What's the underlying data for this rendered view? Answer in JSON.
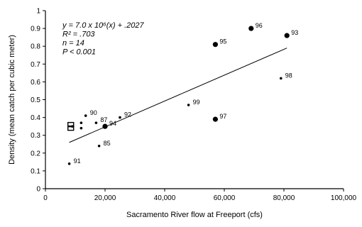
{
  "chart_data": {
    "type": "scatter",
    "title": "",
    "xlabel": "Sacramento River flow at Freeport (cfs)",
    "ylabel": "Density (mean catch per cubic meter)",
    "xlim": [
      0,
      100000
    ],
    "ylim": [
      0,
      1
    ],
    "x_ticks": [
      0,
      20000,
      40000,
      60000,
      80000,
      100000
    ],
    "x_tick_labels": [
      "0",
      "20,000",
      "40,000",
      "60,000",
      "80,000",
      "100,000"
    ],
    "y_ticks": [
      0,
      0.1,
      0.2,
      0.3,
      0.4,
      0.5,
      0.6,
      0.7,
      0.8,
      0.9,
      1
    ],
    "y_tick_labels": [
      "0",
      "0.1",
      "0.2",
      "0.3",
      "0.4",
      "0.5",
      "0.6",
      "0.7",
      "0.8",
      "0.9",
      "1"
    ],
    "grid": false,
    "points": [
      {
        "x": 8000,
        "y": 0.14,
        "label": "91",
        "marker": "small"
      },
      {
        "x": 8500,
        "y": 0.34,
        "label": "",
        "marker": "square"
      },
      {
        "x": 8500,
        "y": 0.36,
        "label": "",
        "marker": "square"
      },
      {
        "x": 9000,
        "y": 0.35,
        "label": "",
        "marker": "small"
      },
      {
        "x": 12000,
        "y": 0.34,
        "label": "",
        "marker": "small"
      },
      {
        "x": 12000,
        "y": 0.37,
        "label": "",
        "marker": "small"
      },
      {
        "x": 13500,
        "y": 0.41,
        "label": "90",
        "marker": "small"
      },
      {
        "x": 17000,
        "y": 0.37,
        "label": "87",
        "marker": "small"
      },
      {
        "x": 18000,
        "y": 0.24,
        "label": "85",
        "marker": "small"
      },
      {
        "x": 20000,
        "y": 0.35,
        "label": "94",
        "marker": "dot"
      },
      {
        "x": 25000,
        "y": 0.4,
        "label": "92",
        "marker": "small"
      },
      {
        "x": 48000,
        "y": 0.47,
        "label": "99",
        "marker": "small"
      },
      {
        "x": 57000,
        "y": 0.39,
        "label": "97",
        "marker": "dot"
      },
      {
        "x": 57000,
        "y": 0.81,
        "label": "95",
        "marker": "dot"
      },
      {
        "x": 69000,
        "y": 0.9,
        "label": "96",
        "marker": "dot"
      },
      {
        "x": 79000,
        "y": 0.62,
        "label": "98",
        "marker": "small"
      },
      {
        "x": 81000,
        "y": 0.86,
        "label": "93",
        "marker": "dot"
      }
    ],
    "trendline": {
      "x": [
        8000,
        81000
      ],
      "y": [
        0.26,
        0.79
      ]
    },
    "annotation_lines": [
      "y = 7.0 x 10⁶(x) + .2027",
      "R² = .703",
      "n = 14",
      "P < 0.001"
    ]
  }
}
